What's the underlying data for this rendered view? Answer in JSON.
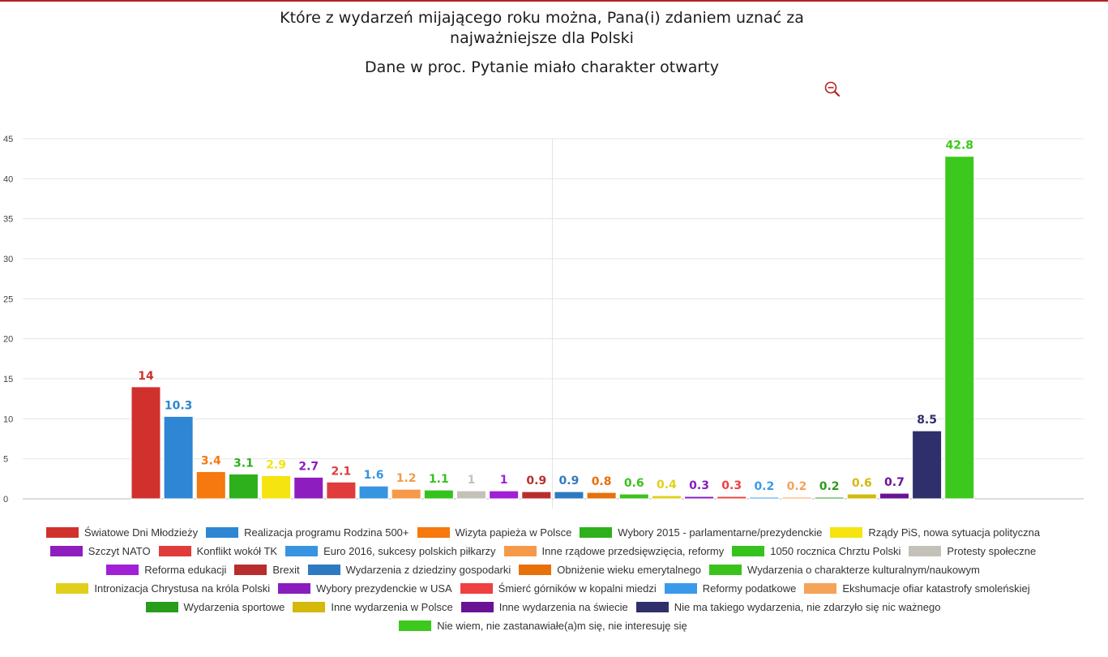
{
  "header": {
    "title_line1": "Które z wydarzeń mijającego roku można, Pana(i) zdaniem uznać za",
    "title_line2": "najważniejsze dla Polski",
    "subtitle": "Dane w proc. Pytanie miało charakter otwarty",
    "zoom_icon": "zoom-out-icon",
    "accent_color": "#b22222"
  },
  "chart_data": {
    "type": "bar",
    "title": "Które z wydarzeń mijającego roku można, Pana(i) zdaniem uznać za najważniejsze dla Polski",
    "subtitle": "Dane w proc. Pytanie miało charakter otwarty",
    "xlabel": "",
    "ylabel": "",
    "ylim": [
      0,
      45
    ],
    "yticks": [
      0,
      5,
      10,
      15,
      20,
      25,
      30,
      35,
      40,
      45
    ],
    "grid": true,
    "legend_position": "bottom",
    "series": [
      {
        "name": "Światowe Dni Młodzieży",
        "value": 14,
        "label": "14",
        "color": "#d0312d"
      },
      {
        "name": "Realizacja programu Rodzina 500+",
        "value": 10.3,
        "label": "10.3",
        "color": "#2e86d4"
      },
      {
        "name": "Wizyta papieża w Polsce",
        "value": 3.4,
        "label": "3.4",
        "color": "#f5790f"
      },
      {
        "name": "Wybory 2015 - parlamentarne/prezydenckie",
        "value": 3.1,
        "label": "3.1",
        "color": "#2eb01c"
      },
      {
        "name": "Rządy PiS, nowa sytuacja polityczna",
        "value": 2.9,
        "label": "2.9",
        "color": "#f5e40f"
      },
      {
        "name": "Szczyt NATO",
        "value": 2.7,
        "label": "2.7",
        "color": "#8e1dbf"
      },
      {
        "name": "Konflikt wokół TK",
        "value": 2.1,
        "label": "2.1",
        "color": "#e03c3c"
      },
      {
        "name": "Euro 2016, sukcesy polskich piłkarzy",
        "value": 1.6,
        "label": "1.6",
        "color": "#3694e0"
      },
      {
        "name": "Inne rządowe przedsięwzięcia, reformy",
        "value": 1.2,
        "label": "1.2",
        "color": "#f59a4a"
      },
      {
        "name": "1050 rocznica Chrztu Polski",
        "value": 1.1,
        "label": "1.1",
        "color": "#36c21c"
      },
      {
        "name": "Protesty społeczne",
        "value": 1,
        "label": "1",
        "color": "#c4c2b8"
      },
      {
        "name": "Reforma edukacji",
        "value": 1,
        "label": "1",
        "color": "#a11fd6"
      },
      {
        "name": "Brexit",
        "value": 0.9,
        "label": "0.9",
        "color": "#b82e2e"
      },
      {
        "name": "Wydarzenia z dziedziny gospodarki",
        "value": 0.9,
        "label": "0.9",
        "color": "#2e7ac2"
      },
      {
        "name": "Obniżenie wieku emerytalnego",
        "value": 0.8,
        "label": "0.8",
        "color": "#e8700a"
      },
      {
        "name": "Wydarzenia o charakterze kulturalnym/naukowym",
        "value": 0.6,
        "label": "0.6",
        "color": "#3cc21c"
      },
      {
        "name": "Intronizacja Chrystusa na króla Polski",
        "value": 0.4,
        "label": "0.4",
        "color": "#e0d01c"
      },
      {
        "name": "Wybory prezydenckie w USA",
        "value": 0.3,
        "label": "0.3",
        "color": "#8a1dbd"
      },
      {
        "name": "Śmierć górników w kopalni miedzi",
        "value": 0.3,
        "label": "0.3",
        "color": "#ee4040"
      },
      {
        "name": "Reformy podatkowe",
        "value": 0.2,
        "label": "0.2",
        "color": "#3a9aea"
      },
      {
        "name": "Ekshumacje ofiar katastrofy smoleńskiej",
        "value": 0.2,
        "label": "0.2",
        "color": "#f5a25a"
      },
      {
        "name": "Wydarzenia sportowe",
        "value": 0.2,
        "label": "0.2",
        "color": "#2a9c1c"
      },
      {
        "name": "Inne wydarzenia w Polsce",
        "value": 0.6,
        "label": "0.6",
        "color": "#d4b80c"
      },
      {
        "name": "Inne wydarzenia na świecie",
        "value": 0.7,
        "label": "0.7",
        "color": "#6a1296"
      },
      {
        "name": "Nie ma takiego wydarzenia, nie zdarzyło się nic ważnego",
        "value": 8.5,
        "label": "8.5",
        "color": "#2e2f6b"
      },
      {
        "name": "Nie wiem, nie zastanawiałe(a)m się, nie interesuję się",
        "value": 42.8,
        "label": "42.8",
        "color": "#3cc81c"
      }
    ]
  }
}
